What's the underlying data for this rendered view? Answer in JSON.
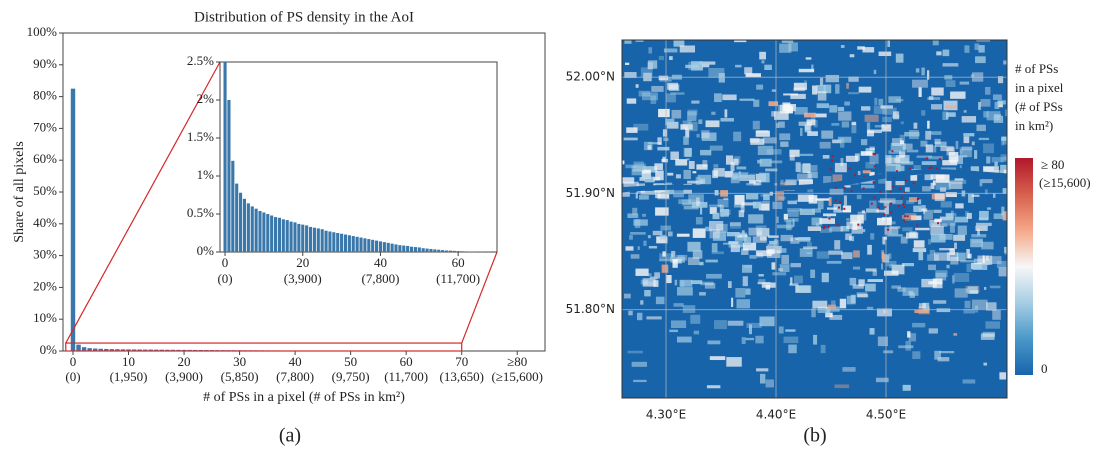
{
  "chart_data": [
    {
      "type": "bar",
      "title": "Distribution of PS density in the AoI",
      "y_label": "Share of all pixels",
      "x_label": "# of PSs in a pixel (# of PSs in km²)",
      "caption": "(a)",
      "color": "#3a78ab",
      "x": [
        0,
        1,
        2,
        3,
        4,
        5,
        6,
        7,
        8,
        9,
        10,
        11,
        12,
        13,
        14,
        15,
        16,
        17,
        18,
        19,
        20,
        21,
        22,
        23,
        24,
        25,
        26,
        27,
        28,
        29,
        30,
        31,
        32,
        33,
        34,
        35,
        36,
        37,
        38,
        39,
        40,
        41,
        42,
        43,
        44,
        45,
        46,
        47,
        48,
        49,
        50,
        51,
        52,
        53,
        54,
        55,
        56,
        57,
        58,
        59,
        60,
        61,
        62,
        63,
        64,
        65,
        66,
        67,
        68,
        69
      ],
      "values": [
        82.5,
        2.0,
        1.2,
        0.9,
        0.78,
        0.7,
        0.64,
        0.6,
        0.57,
        0.54,
        0.52,
        0.5,
        0.48,
        0.46,
        0.45,
        0.43,
        0.42,
        0.4,
        0.39,
        0.37,
        0.36,
        0.35,
        0.33,
        0.32,
        0.31,
        0.3,
        0.28,
        0.27,
        0.26,
        0.25,
        0.24,
        0.23,
        0.22,
        0.21,
        0.2,
        0.19,
        0.18,
        0.17,
        0.16,
        0.15,
        0.14,
        0.13,
        0.12,
        0.11,
        0.1,
        0.09,
        0.085,
        0.08,
        0.07,
        0.065,
        0.06,
        0.05,
        0.045,
        0.04,
        0.035,
        0.03,
        0.025,
        0.02,
        0.018,
        0.015,
        0.012,
        0.01,
        0.008,
        0.006,
        0.005,
        0.004,
        0.003,
        0.002,
        0.002,
        0.001
      ],
      "xlim": [
        -1.8,
        85
      ],
      "ylim": [
        0,
        100
      ],
      "xticks": [
        0,
        10,
        20,
        30,
        40,
        50,
        60,
        70,
        {
          "value": 80,
          "label": "≥80"
        }
      ],
      "xtick_sublabels": [
        "(0)",
        "(1,950)",
        "(3,900)",
        "(5,850)",
        "(7,800)",
        "(9,750)",
        "(11,700)",
        "(13,650)",
        "(≥15,600)"
      ],
      "yticks": [
        {
          "value": 0,
          "label": "0%"
        },
        {
          "value": 10,
          "label": "10%"
        },
        {
          "value": 20,
          "label": "20%"
        },
        {
          "value": 30,
          "label": "30%"
        },
        {
          "value": 40,
          "label": "40%"
        },
        {
          "value": 50,
          "label": "50%"
        },
        {
          "value": 60,
          "label": "60%"
        },
        {
          "value": 70,
          "label": "70%"
        },
        {
          "value": 80,
          "label": "80%"
        },
        {
          "value": 90,
          "label": "90%"
        },
        {
          "value": 100,
          "label": "100%"
        }
      ]
    },
    {
      "type": "inset",
      "zoom_color": "#d62728",
      "xlim": [
        -1.3,
        70
      ],
      "ylim": [
        0,
        2.5
      ],
      "xticks": [
        0,
        20,
        40,
        60
      ],
      "xtick_sublabels": [
        "(0)",
        "(3,900)",
        "(7,800)",
        "(11,700)"
      ],
      "yticks": [
        {
          "value": 0,
          "label": "0%"
        },
        {
          "value": 0.5,
          "label": "0.5%"
        },
        {
          "value": 1,
          "label": "1%"
        },
        {
          "value": 1.5,
          "label": "1.5%"
        },
        {
          "value": 2,
          "label": "2%"
        },
        {
          "value": 2.5,
          "label": "2.5%"
        }
      ]
    },
    {
      "type": "map",
      "caption": "(b)",
      "xlim": [
        4.26,
        4.61
      ],
      "ylim": [
        51.724,
        52.032
      ],
      "xticks": [
        {
          "value": 4.3,
          "label": "4.30°E"
        },
        {
          "value": 4.4,
          "label": "4.40°E"
        },
        {
          "value": 4.5,
          "label": "4.50°E"
        }
      ],
      "yticks": [
        {
          "value": 51.8,
          "label": "51.80°N"
        },
        {
          "value": 51.9,
          "label": "51.90°N"
        },
        {
          "value": 52.0,
          "label": "52.00°N"
        }
      ],
      "colorbar_title": [
        "# of PSs",
        "in a pixel",
        "(# of PSs",
        "in km²)"
      ],
      "colorbar_lim": [
        0,
        80
      ],
      "colorbar_ticks": [
        0,
        {
          "value": 80,
          "label": "≥ 80"
        }
      ],
      "colorbar_sublabel": "(≥15,600)",
      "cmap": [
        "#1764ab",
        "#4a98c9",
        "#a6cee4",
        "#f7f7f7",
        "#f5a889",
        "#d6604d",
        "#b2182b"
      ]
    }
  ]
}
